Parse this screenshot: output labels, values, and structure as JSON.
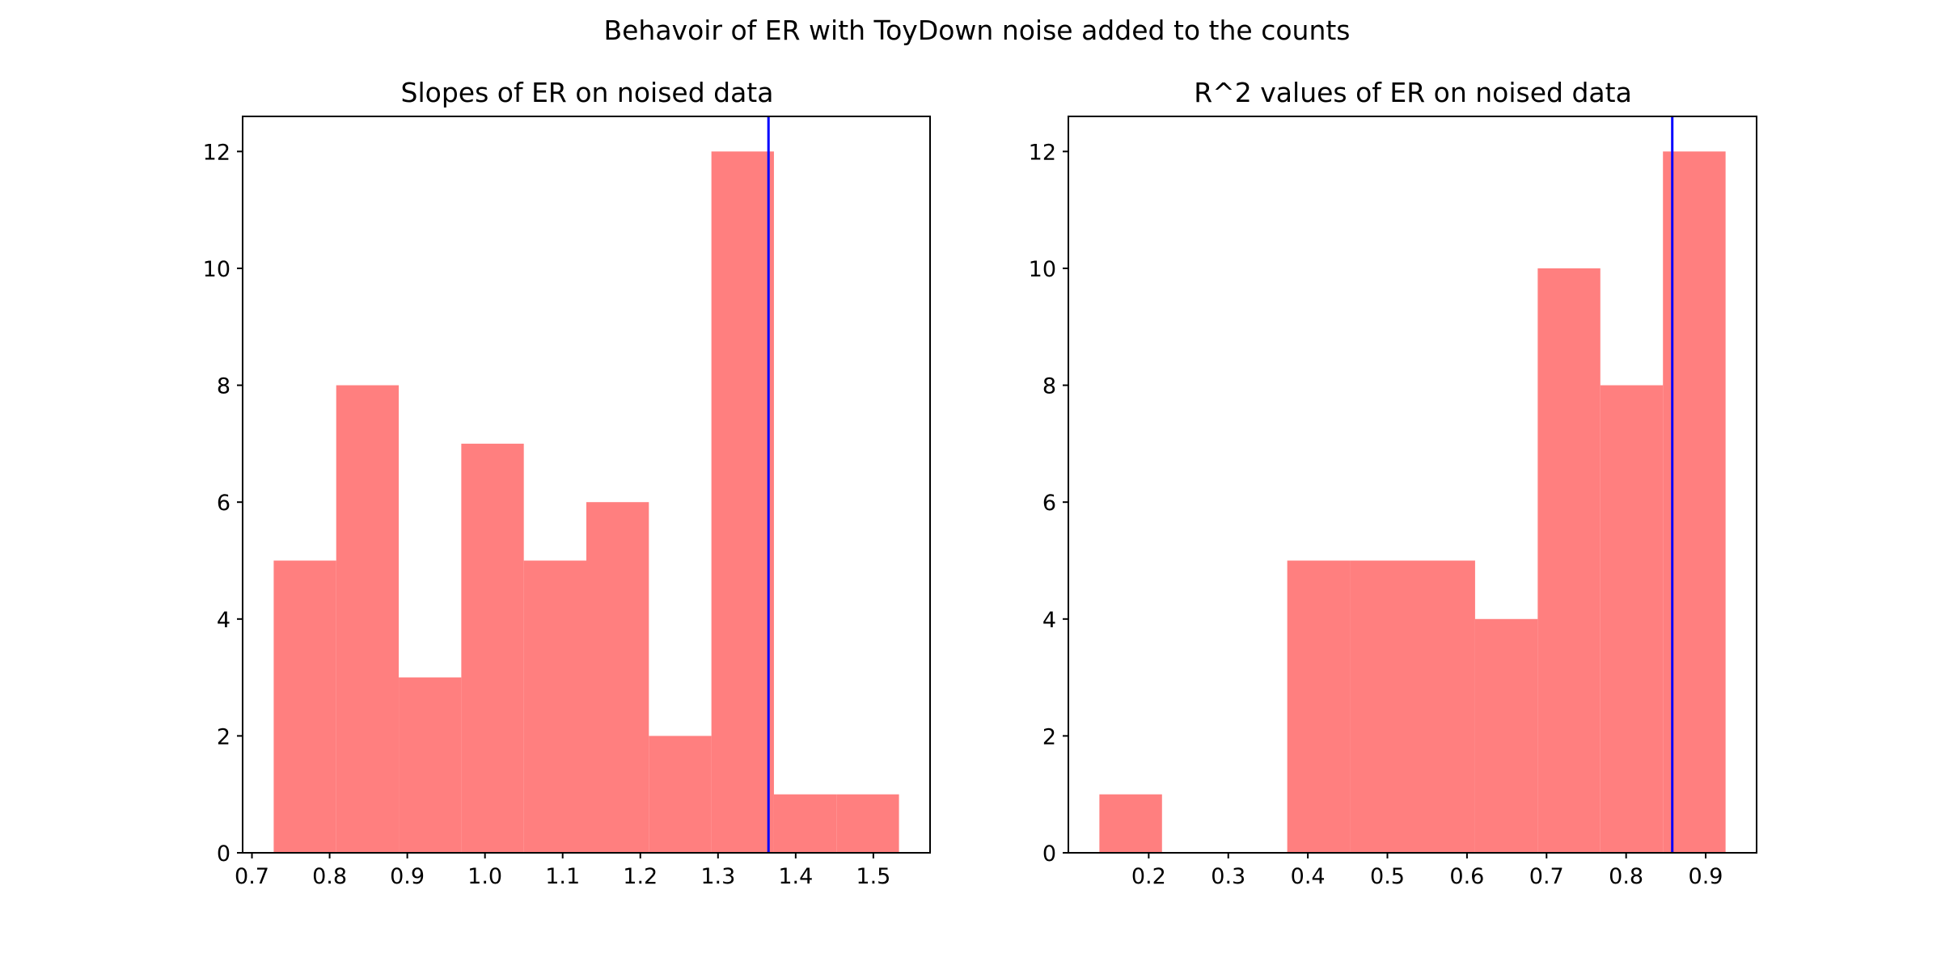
{
  "figure": {
    "suptitle": "Behavoir of ER with ToyDown noise added to the counts"
  },
  "colors": {
    "bar": "#ff7f7f",
    "reference_line": "#0000ff",
    "axes": "#000000"
  },
  "chart_data": [
    {
      "type": "bar",
      "title": "Slopes of ER on noised data",
      "xlabel": "",
      "ylabel": "",
      "bin_edges": [
        0.728,
        0.8085,
        0.889,
        0.9695,
        1.05,
        1.1305,
        1.211,
        1.2915,
        1.372,
        1.4525,
        1.533
      ],
      "values": [
        5,
        8,
        3,
        7,
        5,
        6,
        2,
        12,
        1,
        1
      ],
      "reference_line_x": 1.365,
      "xlim": [
        0.688,
        1.573
      ],
      "ylim": [
        0,
        12.6
      ],
      "xticks": [
        0.7,
        0.8,
        0.9,
        1.0,
        1.1,
        1.2,
        1.3,
        1.4,
        1.5
      ],
      "xtick_labels": [
        "0.7",
        "0.8",
        "0.9",
        "1.0",
        "1.1",
        "1.2",
        "1.3",
        "1.4",
        "1.5"
      ],
      "yticks": [
        0,
        2,
        4,
        6,
        8,
        10,
        12
      ],
      "ytick_labels": [
        "0",
        "2",
        "4",
        "6",
        "8",
        "10",
        "12"
      ],
      "grid": false,
      "legend": "none"
    },
    {
      "type": "bar",
      "title": "R^2 values of ER on noised data",
      "xlabel": "",
      "ylabel": "",
      "bin_edges": [
        0.138,
        0.2167,
        0.2954,
        0.3741,
        0.4528,
        0.5315,
        0.6102,
        0.6889,
        0.7676,
        0.8463,
        0.925
      ],
      "values": [
        1,
        0,
        0,
        5,
        5,
        5,
        4,
        10,
        8,
        12
      ],
      "reference_line_x": 0.858,
      "xlim": [
        0.099,
        0.964
      ],
      "ylim": [
        0,
        12.6
      ],
      "xticks": [
        0.2,
        0.3,
        0.4,
        0.5,
        0.6,
        0.7,
        0.8,
        0.9
      ],
      "xtick_labels": [
        "0.2",
        "0.3",
        "0.4",
        "0.5",
        "0.6",
        "0.7",
        "0.8",
        "0.9"
      ],
      "yticks": [
        0,
        2,
        4,
        6,
        8,
        10,
        12
      ],
      "ytick_labels": [
        "0",
        "2",
        "4",
        "6",
        "8",
        "10",
        "12"
      ],
      "grid": false,
      "legend": "none"
    }
  ]
}
